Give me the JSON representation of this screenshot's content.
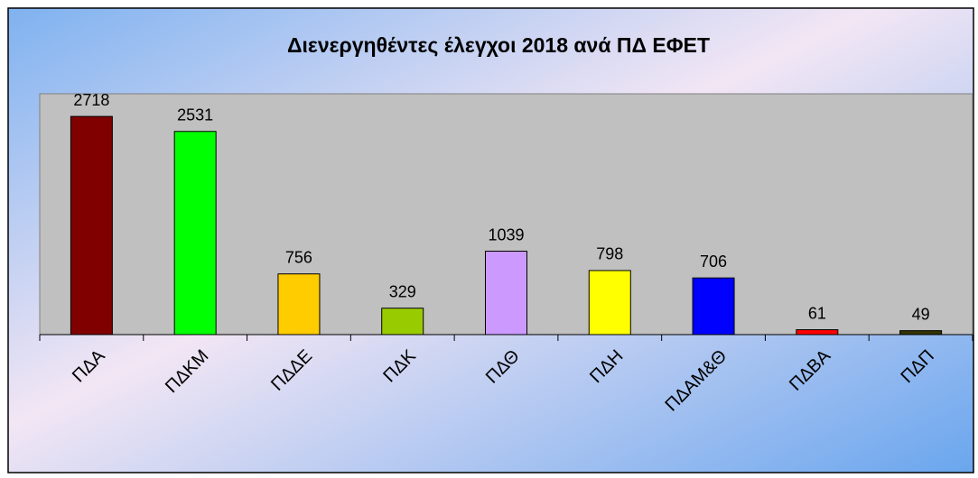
{
  "chart_data": {
    "type": "bar",
    "title": "Διενεργηθέντες έλεγχοι 2018 ανά ΠΔ ΕΦΕΤ",
    "categories": [
      "ΠΔΑ",
      "ΠΔΚΜ",
      "ΠΔΔΕ",
      "ΠΔΚ",
      "ΠΔΘ",
      "ΠΔΗ",
      "ΠΔΑΜ&Θ",
      "ΠΔΒΑ",
      "ΠΔΠ"
    ],
    "values": [
      2718,
      2531,
      756,
      329,
      1039,
      798,
      706,
      61,
      49
    ],
    "colors": [
      "#800000",
      "#00ff00",
      "#ffcc00",
      "#99cc00",
      "#cc99ff",
      "#ffff00",
      "#0000ff",
      "#ff0000",
      "#333300"
    ],
    "ylim": [
      0,
      3000
    ]
  }
}
